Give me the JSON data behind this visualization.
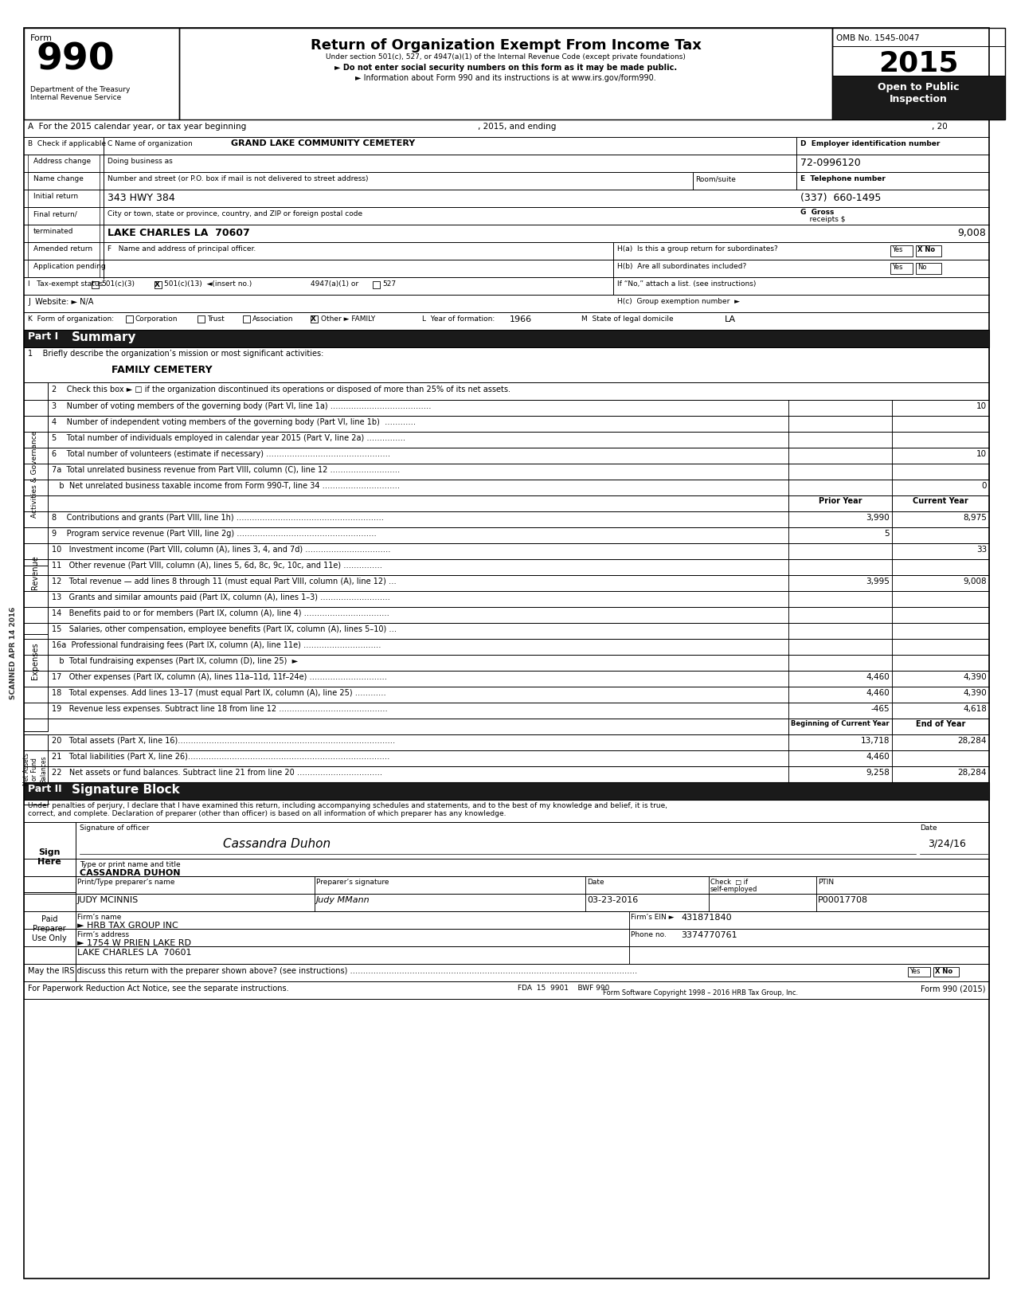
{
  "form_number": "990",
  "title": "Return of Organization Exempt From Income Tax",
  "subtitle1": "Under section 501(c), 527, or 4947(a)(1) of the Internal Revenue Code (except private foundations)",
  "subtitle2": "► Do not enter social security numbers on this form as it may be made public.",
  "subtitle3": "► Information about Form 990 and its instructions is at www.irs.gov/form990.",
  "omb": "OMB No. 1545-0047",
  "year": "2015",
  "open_to_public": "Open to Public\nInspection",
  "dept": "Department of the Treasury\nInternal Revenue Service",
  "org_name": "GRAND LAKE COMMUNITY CEMETERY",
  "doing_business_as": "Doing business as",
  "ein": "72-0996120",
  "address_label": "Number and street (or P.O. box if mail is not delivered to street address)",
  "address": "343 HWY 384",
  "room_suite": "Room/suite",
  "telephone_label": "E  Telephone number",
  "telephone": "(337)  660-1495",
  "city_label": "City or town, state or province, country, and ZIP or foreign postal code",
  "city": "LAKE CHARLES LA  70607",
  "gross_receipts": "9,008",
  "principal_officer_label": "F   Name and address of principal officer.",
  "ha_label": "H(a)  Is this a group return for subordinates?",
  "hb_label": "H(b)  Are all subordinates included?",
  "hc_label": "If “No,” attach a list. (see instructions)",
  "website_label": "J  Website: ► N/A",
  "hc_group": "H(c)  Group exemption number  ►",
  "year_formation": "1966",
  "state_legal": "LA",
  "part1_title": "Summary",
  "line1_label": "1    Briefly describe the organization’s mission or most significant activities:",
  "line1_value": "FAMILY CEMETERY",
  "line2_label": "2    Check this box ► □ if the organization discontinued its operations or disposed of more than 25% of its net assets.",
  "line3_label": "3    Number of voting members of the governing body (Part VI, line 1a) …………………………………",
  "line3_current": "10",
  "line4_label": "4    Number of independent voting members of the governing body (Part VI, line 1b)  …………",
  "line5_label": "5    Total number of individuals employed in calendar year 2015 (Part V, line 2a) ……………",
  "line6_label": "6    Total number of volunteers (estimate if necessary) …………………………………………",
  "line6_current": "10",
  "line7a_label": "7a  Total unrelated business revenue from Part VIII, column (C), line 12 ………………………",
  "line7b_label": "   b  Net unrelated business taxable income from Form 990-T, line 34 …………………………",
  "line7b_current": "0",
  "prior_year_header": "Prior Year",
  "current_year_header": "Current Year",
  "line8_label": "8    Contributions and grants (Part VIII, line 1h) …………………………………………………",
  "line8_prior": "3,990",
  "line8_current": "8,975",
  "line9_label": "9    Program service revenue (Part VIII, line 2g) ………………………………………………",
  "line9_prior": "5",
  "line10_label": "10   Investment income (Part VIII, column (A), lines 3, 4, and 7d) ……………………………",
  "line10_current": "33",
  "line11_label": "11   Other revenue (Part VIII, column (A), lines 5, 6d, 8c, 9c, 10c, and 11e) ……………",
  "line12_label": "12   Total revenue — add lines 8 through 11 (must equal Part VIII, column (A), line 12) …",
  "line12_prior": "3,995",
  "line12_current": "9,008",
  "line13_label": "13   Grants and similar amounts paid (Part IX, column (A), lines 1–3) ………………………",
  "line14_label": "14   Benefits paid to or for members (Part IX, column (A), line 4) ……………………………",
  "line15_label": "15   Salaries, other compensation, employee benefits (Part IX, column (A), lines 5–10) …",
  "line16a_label": "16a  Professional fundraising fees (Part IX, column (A), line 11e) …………………………",
  "line16b_label": "   b  Total fundraising expenses (Part IX, column (D), line 25)  ►",
  "line17_label": "17   Other expenses (Part IX, column (A), lines 11a–11d, 11f–24e) …………………………",
  "line17_prior": "4,460",
  "line17_current": "4,390",
  "line18_label": "18   Total expenses. Add lines 13–17 (must equal Part IX, column (A), line 25) …………",
  "line18_prior": "4,460",
  "line18_current": "4,390",
  "line19_label": "19   Revenue less expenses. Subtract line 18 from line 12 ……………………………………",
  "line19_prior": "-465",
  "line19_current": "4,618",
  "boc_header": "Beginning of Current Year",
  "eoy_header": "End of Year",
  "line20_label": "20   Total assets (Part X, line 16)…………………………………………………………………………",
  "line20_boc": "13,718",
  "line20_eoy": "28,284",
  "line21_label": "21   Total liabilities (Part X, line 26)……………………………………………………………………",
  "line21_boc": "4,460",
  "line22_label": "22   Net assets or fund balances. Subtract line 21 from line 20 ……………………………",
  "line22_boc": "9,258",
  "line22_eoy": "28,284",
  "part2_title": "Signature Block",
  "part2_text1": "Under penalties of perjury, I declare that I have examined this return, including accompanying schedules and statements, and to the best of my knowledge and belief, it is true,",
  "part2_text2": "correct, and complete. Declaration of preparer (other than officer) is based on all information of which preparer has any knowledge.",
  "signature_label": "Signature of officer",
  "date_label": "Date",
  "signature_value": "Cassandra Duhon",
  "signature_date": "3/24/16",
  "typed_name_label": "Type or print name and title",
  "typed_name": "CASSANDRA DUHON",
  "preparer_name_label": "Print/Type preparer’s name",
  "preparer_name": "JUDY MCINNIS",
  "preparer_sig_label": "Preparer’s signature",
  "preparer_sig": "Judy MMann",
  "preparer_date": "03-23-2016",
  "ptin_label": "PTIN",
  "ptin": "P00017708",
  "firm_name": "► HRB TAX GROUP INC",
  "firm_ein_label": "Firm’s EIN ►",
  "firm_ein": "431871840",
  "firm_address": "► 1754 W PRIEN LAKE RD",
  "firm_phone_label": "Phone no.",
  "firm_phone": "3374770761",
  "firm_city": "LAKE CHARLES LA  70601",
  "discuss_label": "May the IRS discuss this return with the preparer shown above? (see instructions) …………………………………………………………………………………………………",
  "paperwork_label": "For Paperwork Reduction Act Notice, see the separate instructions.",
  "fda_label": "FDA  15  9901    BWF 990",
  "software_label": "Form Software Copyright 1998 – 2016 HRB Tax Group, Inc.",
  "form_footer": "Form 990 (2015)",
  "bg_color": "#ffffff"
}
